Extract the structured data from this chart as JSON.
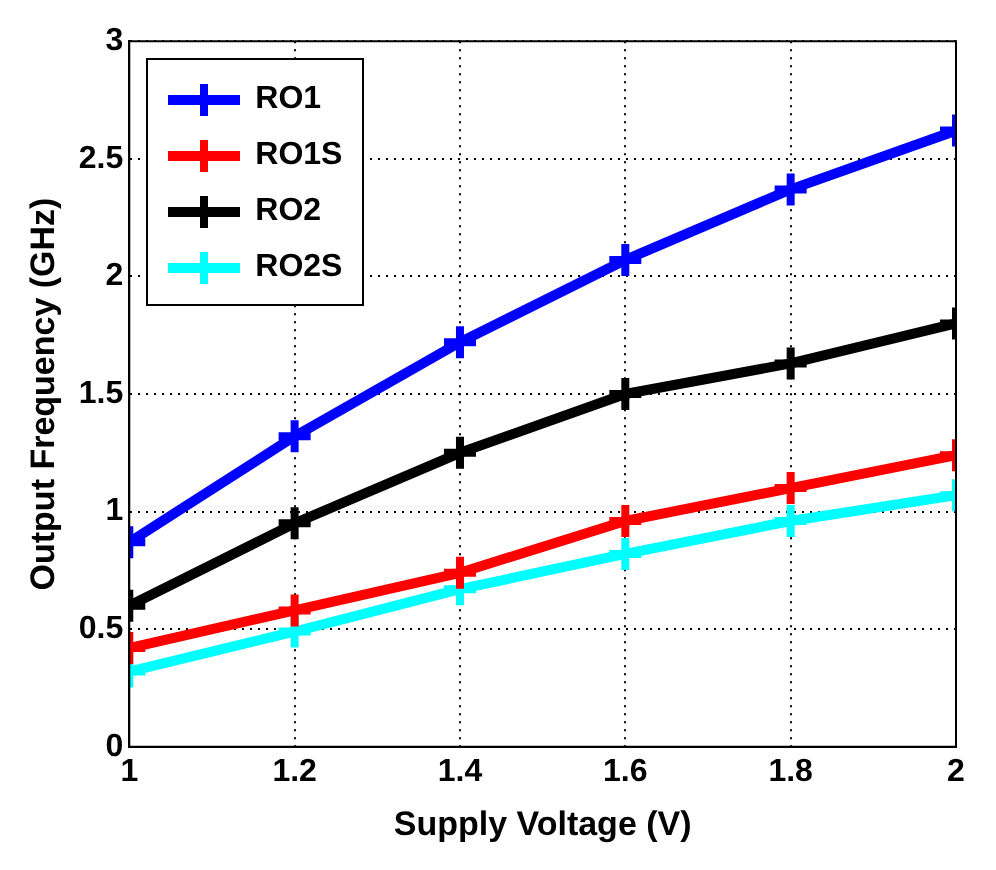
{
  "chart_data": {
    "type": "line",
    "xlabel": "Supply Voltage (V)",
    "ylabel": "Output Frequency (GHz)",
    "x": [
      1,
      1.2,
      1.4,
      1.6,
      1.8,
      2
    ],
    "series": [
      {
        "name": "RO1",
        "color": "#0000ff",
        "values": [
          0.87,
          1.32,
          1.72,
          2.07,
          2.37,
          2.62
        ]
      },
      {
        "name": "RO1S",
        "color": "#ff0000",
        "values": [
          0.42,
          0.58,
          0.74,
          0.96,
          1.1,
          1.24
        ]
      },
      {
        "name": "RO2",
        "color": "#000000",
        "values": [
          0.6,
          0.95,
          1.25,
          1.5,
          1.63,
          1.8
        ]
      },
      {
        "name": "RO2S",
        "color": "#00ffff",
        "values": [
          0.32,
          0.49,
          0.67,
          0.82,
          0.96,
          1.07
        ]
      }
    ],
    "xlim": [
      1,
      2
    ],
    "xticks": [
      1,
      1.2,
      1.4,
      1.6,
      1.8,
      2
    ],
    "ylim": [
      0,
      3
    ],
    "yticks": [
      0,
      0.5,
      1,
      1.5,
      2,
      2.5,
      3
    ],
    "grid": true,
    "legend": "top left",
    "marker": "cross",
    "line_style": "solid"
  }
}
